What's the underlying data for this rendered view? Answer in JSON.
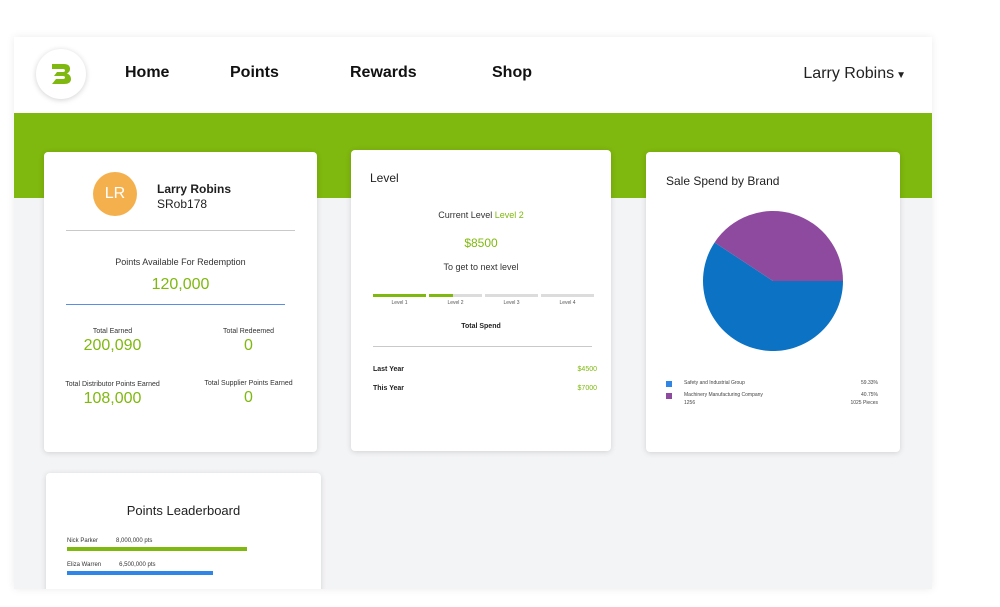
{
  "nav": {
    "links": [
      "Home",
      "Points",
      "Rewards",
      "Shop"
    ],
    "user_name": "Larry Robins",
    "chevron_icon": "chevron-down-icon"
  },
  "colors": {
    "brand_green": "#7fb80e",
    "blue": "#0b72c4",
    "purple": "#8e4a9e",
    "avatar": "#f5b04e"
  },
  "profile": {
    "initials": "LR",
    "name": "Larry Robins",
    "username": "SRob178",
    "points_label": "Points Available For Redemption",
    "points_value": "120,000",
    "stats": [
      {
        "label": "Total Earned",
        "value": "200,090"
      },
      {
        "label": "Total Redeemed",
        "value": "0"
      },
      {
        "label": "Total Distributor Points Earned",
        "value": "108,000"
      },
      {
        "label": "Total Supplier Points Earned",
        "value": "0"
      }
    ]
  },
  "level": {
    "title": "Level",
    "current_prefix": "Current Level",
    "current_level": "Level 2",
    "amount": "$8500",
    "next_label": "To get to next level",
    "levels": [
      {
        "label": "Level 1",
        "progress": 1.0
      },
      {
        "label": "Level 2",
        "progress": 0.45
      },
      {
        "label": "Level 3",
        "progress": 0
      },
      {
        "label": "Level 4",
        "progress": 0
      }
    ],
    "total_spend_label": "Total Spend",
    "rows": [
      {
        "label": "Last Year",
        "amount": "$4500"
      },
      {
        "label": "This Year",
        "amount": "$7000"
      }
    ]
  },
  "spend": {
    "title": "Sale Spend by Brand",
    "chart_data": {
      "type": "pie",
      "series": [
        {
          "name": "Safety and Industrial Group",
          "value": 59.33,
          "label": "59.33%"
        },
        {
          "name": "Machinery Manufacturing Company",
          "value": 40.75,
          "label": "40.75%"
        }
      ]
    },
    "legend_sub_left": "1256",
    "legend_sub_right": "1025 Pieces"
  },
  "leaderboard": {
    "title": "Points Leaderboard",
    "entries": [
      {
        "name": "Nick Parker",
        "points": "8,000,000 pts",
        "fraction": 1.0
      },
      {
        "name": "Eliza Warren",
        "points": "6,500,000 pts",
        "fraction": 0.81
      }
    ]
  }
}
